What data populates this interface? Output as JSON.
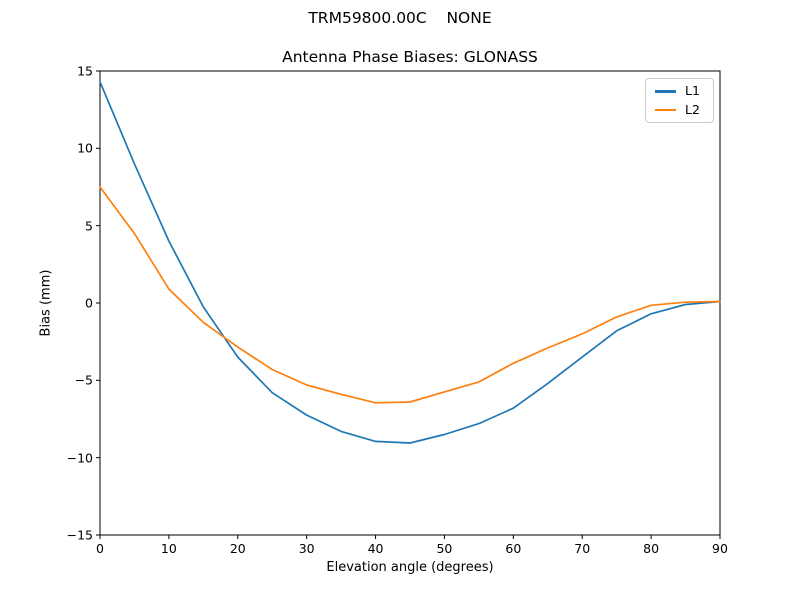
{
  "figure": {
    "suptitle": "TRM59800.00C    NONE"
  },
  "chart_data": {
    "type": "line",
    "title": "Antenna Phase Biases: GLONASS",
    "xlabel": "Elevation angle (degrees)",
    "ylabel": "Bias (mm)",
    "xlim": [
      0,
      90
    ],
    "ylim": [
      -15,
      15
    ],
    "x_ticks": [
      0,
      10,
      20,
      30,
      40,
      50,
      60,
      70,
      80,
      90
    ],
    "y_ticks": [
      -15,
      -10,
      -5,
      0,
      5,
      10,
      15
    ],
    "grid": false,
    "legend_position": "upper right",
    "x": [
      0,
      5,
      10,
      15,
      20,
      25,
      30,
      35,
      40,
      45,
      50,
      55,
      60,
      65,
      70,
      75,
      80,
      85,
      90
    ],
    "series": [
      {
        "name": "L1",
        "color": "#1f77b4",
        "values": [
          14.3,
          9.0,
          4.0,
          -0.25,
          -3.5,
          -5.8,
          -7.25,
          -8.3,
          -8.95,
          -9.05,
          -8.5,
          -7.8,
          -6.8,
          -5.2,
          -3.5,
          -1.8,
          -0.7,
          -0.1,
          0.1
        ]
      },
      {
        "name": "L2",
        "color": "#ff7f0e",
        "values": [
          7.5,
          4.5,
          0.9,
          -1.25,
          -2.85,
          -4.3,
          -5.3,
          -5.9,
          -6.45,
          -6.4,
          -5.75,
          -5.1,
          -3.9,
          -2.9,
          -2.0,
          -0.9,
          -0.15,
          0.05,
          0.1
        ]
      }
    ]
  }
}
